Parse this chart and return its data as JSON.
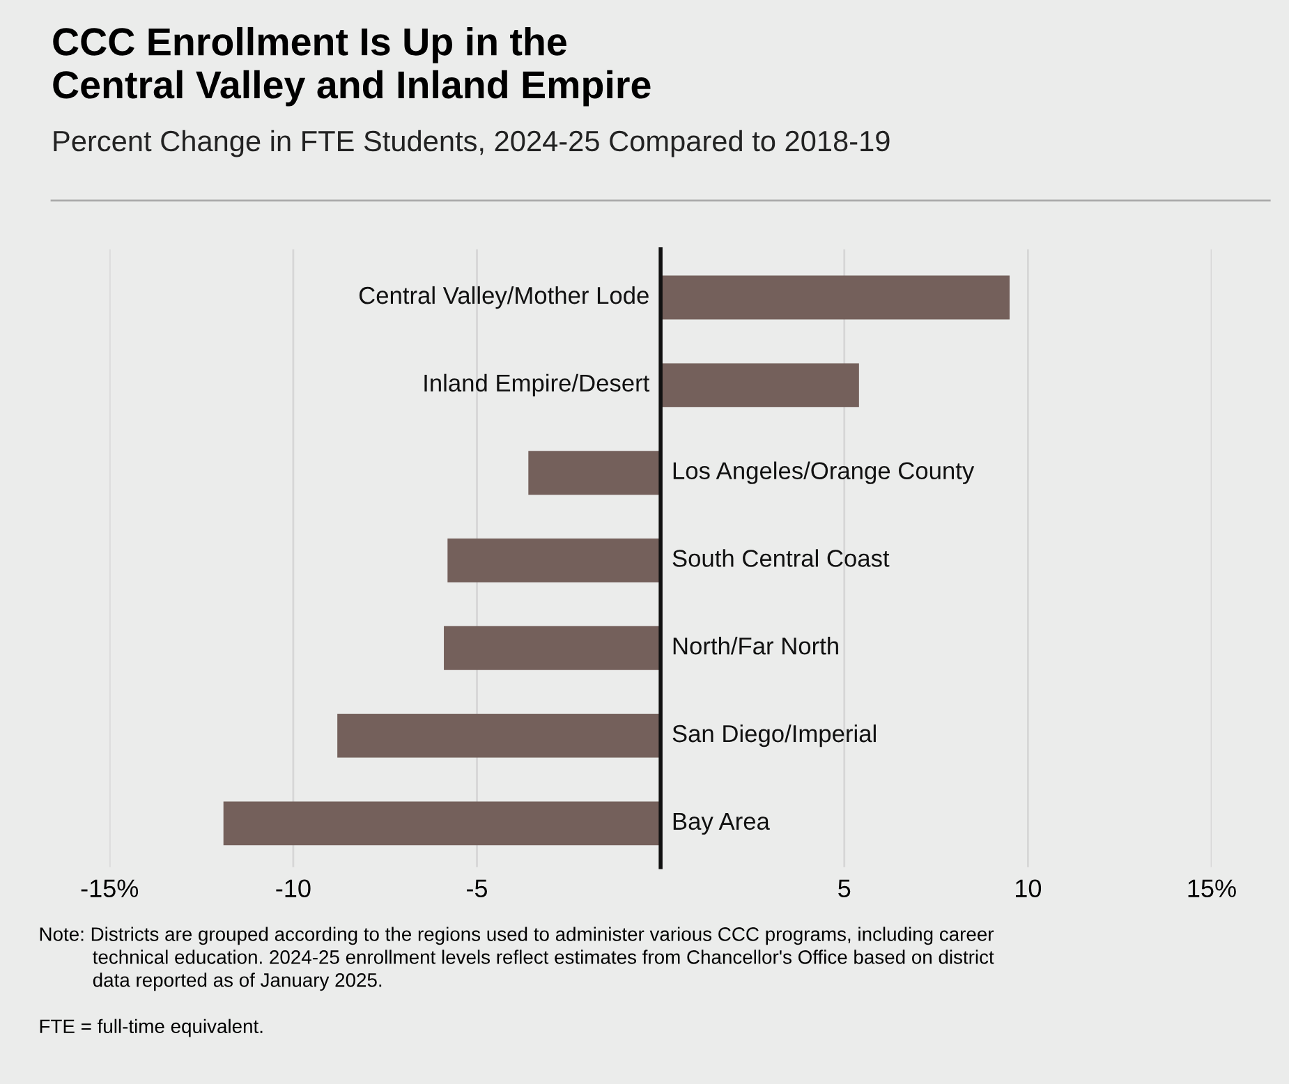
{
  "chart_data": {
    "type": "bar",
    "orientation": "horizontal",
    "title": "CCC Enrollment Is Up in the\nCentral Valley and Inland Empire",
    "subtitle": "Percent Change in FTE Students, 2024-25 Compared to 2018-19",
    "categories": [
      "Central Valley/Mother Lode",
      "Inland Empire/Desert",
      "Los Angeles/Orange County",
      "South Central Coast",
      "North/Far North",
      "San Diego/Imperial",
      "Bay Area"
    ],
    "values": [
      9.5,
      5.4,
      -3.6,
      -5.8,
      -5.9,
      -8.8,
      -11.9
    ],
    "color": "#74605b",
    "xlim": [
      -15,
      15
    ],
    "xticks": [
      {
        "value": -15,
        "label": "-15%"
      },
      -10,
      -5,
      5,
      10,
      {
        "value": 15,
        "label": "15%"
      }
    ],
    "grid": "x",
    "legend": false,
    "annotations": [
      "Note: Districts are grouped according to the regions used to administer various CCC programs, including career\n          technical education. 2024-25 enrollment levels reflect estimates from Chancellor's Office based on district\n          data reported as of January 2025.",
      "FTE = full-time equivalent."
    ]
  }
}
